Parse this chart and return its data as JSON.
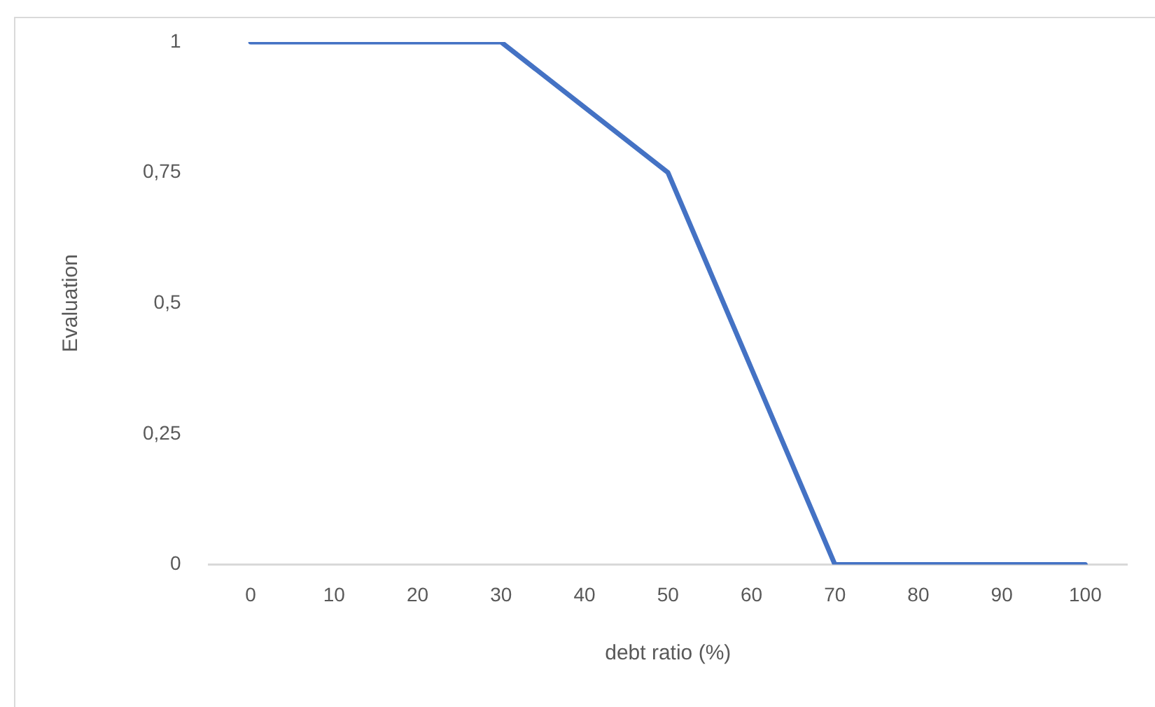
{
  "chart_data": {
    "type": "line",
    "xlabel": "debt ratio (%)",
    "ylabel": "Evaluation",
    "categories": [
      "0",
      "10",
      "20",
      "30",
      "40",
      "50",
      "60",
      "70",
      "80",
      "90",
      "100"
    ],
    "series": [
      {
        "color": "#4472c4",
        "values": [
          1,
          1,
          1,
          1,
          0.875,
          0.75,
          0.375,
          0,
          0,
          0,
          0
        ]
      }
    ],
    "ylim": [
      0,
      1
    ],
    "yticks": [
      0,
      {
        "value": 0.25,
        "label": "0,25"
      },
      {
        "value": 0.5,
        "label": "0,5"
      },
      {
        "value": 0.75,
        "label": "0,75"
      },
      1
    ],
    "grid": false,
    "legend": false,
    "marker": "none",
    "line_style": "solid"
  }
}
